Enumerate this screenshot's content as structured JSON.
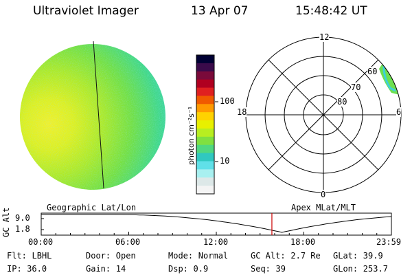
{
  "header": {
    "instrument": "Ultraviolet Imager",
    "date": "13 Apr 07",
    "time": "15:48:42 UT"
  },
  "colorbar": {
    "unit_label": "photon cm⁻²s⁻¹",
    "ticks": [
      "100",
      "10"
    ],
    "colors": [
      "#000033",
      "#3a0a4a",
      "#7a0a3a",
      "#b00020",
      "#e02020",
      "#f05a00",
      "#ff9a00",
      "#ffd200",
      "#e8f000",
      "#b8ee20",
      "#80e040",
      "#50d880",
      "#30c8c0",
      "#60e0e8",
      "#a8f0f0",
      "#dde8e8",
      "#f4f4f4"
    ]
  },
  "polar_plot": {
    "mlt_labels": {
      "top": "12",
      "left": "18",
      "right": "6",
      "bottom": "0"
    },
    "lat_labels": [
      "60",
      "70",
      "80"
    ]
  },
  "timeline": {
    "left_title": "Geographic Lat/Lon",
    "right_title": "Apex MLat/MLT",
    "axis_label": "GC Alt",
    "y_ticks": [
      "9.0",
      "1.8"
    ],
    "x_ticks": [
      "00:00",
      "06:00",
      "12:00",
      "18:00",
      "23:59"
    ],
    "current_time_hours": 15.81,
    "marker_color": "#cc0000"
  },
  "status": {
    "row1": [
      {
        "key": "Flt:",
        "value": "LBHL"
      },
      {
        "key": "Door:",
        "value": "Open"
      },
      {
        "key": "Mode:",
        "value": "Normal"
      },
      {
        "key": "GC Alt:",
        "value": "2.7 Re"
      },
      {
        "key": "GLat:",
        "value": "39.9"
      }
    ],
    "row2": [
      {
        "key": "IP:",
        "value": "36.0"
      },
      {
        "key": "Gain:",
        "value": "14"
      },
      {
        "key": "Dsp:",
        "value": "0.9"
      },
      {
        "key": "Seq:",
        "value": "39"
      },
      {
        "key": "GLon:",
        "value": "253.7"
      }
    ]
  }
}
